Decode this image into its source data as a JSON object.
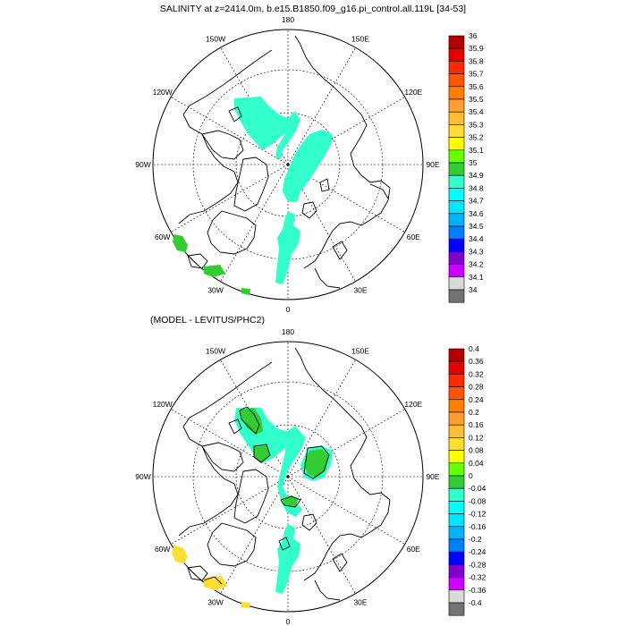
{
  "top_panel": {
    "title": "SALINITY at z=2414.0m, b.e15.B1850.f09_g16.pi_control.all.119L [34-53]",
    "lon_labels": [
      "180",
      "150E",
      "120E",
      "90E",
      "60E",
      "30E",
      "0",
      "30W",
      "60W",
      "90W",
      "120W",
      "150W"
    ],
    "colorbar": {
      "labels": [
        "36",
        "35.9",
        "35.8",
        "35.7",
        "35.6",
        "35.5",
        "35.4",
        "35.3",
        "35.2",
        "35.1",
        "35",
        "34.9",
        "34.8",
        "34.7",
        "34.6",
        "34.5",
        "34.4",
        "34.3",
        "34.2",
        "34.1",
        "34"
      ],
      "colors": [
        "#b30000",
        "#e60000",
        "#ff2a00",
        "#ff5500",
        "#ff8000",
        "#ff9f33",
        "#ffbf33",
        "#ffdd33",
        "#ffff00",
        "#66ff00",
        "#33cc33",
        "#33ffcc",
        "#00ffff",
        "#00e6ff",
        "#00b3ff",
        "#0080ff",
        "#0000ff",
        "#8000cc",
        "#cc00ff",
        "#d9d9d9",
        "#737373"
      ]
    }
  },
  "bottom_panel": {
    "title": "(MODEL - LEVITUS/PHC2)",
    "lon_labels": [
      "180",
      "150E",
      "120E",
      "90E",
      "60E",
      "30E",
      "0",
      "30W",
      "60W",
      "90W",
      "120W",
      "150W"
    ],
    "colorbar": {
      "labels": [
        "0.4",
        "0.36",
        "0.32",
        "0.28",
        "0.24",
        "0.2",
        "0.16",
        "0.12",
        "0.08",
        "0.04",
        "0",
        "-0.04",
        "-0.08",
        "-0.12",
        "-0.16",
        "-0.2",
        "-0.24",
        "-0.28",
        "-0.32",
        "-0.36",
        "-0.4"
      ],
      "colors": [
        "#b30000",
        "#e60000",
        "#ff2a00",
        "#ff5500",
        "#ff8000",
        "#ff9f33",
        "#ffbf33",
        "#ffdd33",
        "#ffff00",
        "#66ff00",
        "#33cc33",
        "#33ffcc",
        "#00ffff",
        "#00e6ff",
        "#00b3ff",
        "#0080ff",
        "#0000ff",
        "#8000cc",
        "#cc00ff",
        "#d9d9d9",
        "#737373"
      ]
    }
  },
  "colors": {
    "fill_cyan": "#33ffcc",
    "fill_green": "#33cc33",
    "fill_yellow": "#ffdd33",
    "line": "#000000"
  }
}
